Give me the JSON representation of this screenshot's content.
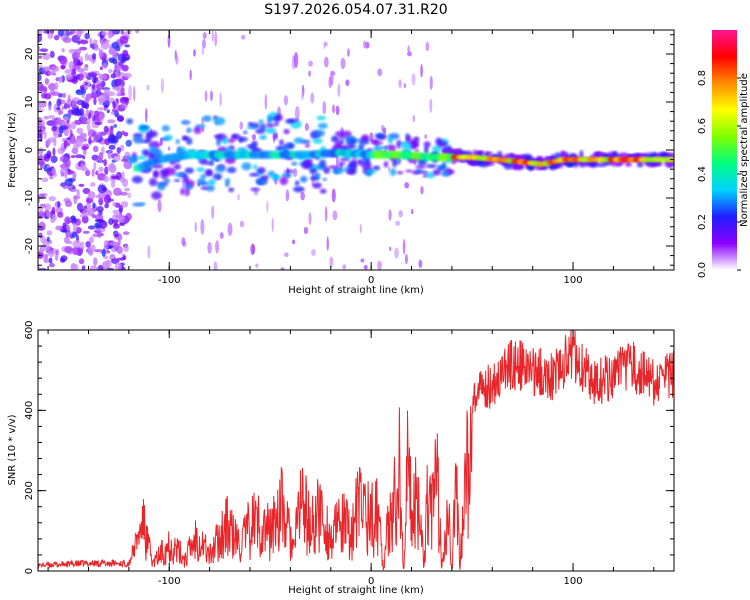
{
  "chart_data": [
    {
      "type": "heatmap",
      "title": "S197.2026.054.07.31.R20",
      "xlabel": "Height of straight line (km)",
      "ylabel": "Frequency (Hz)",
      "xlim": [
        -165,
        150
      ],
      "ylim": [
        -25,
        25
      ],
      "xticks": [
        -100,
        0,
        100
      ],
      "yticks": [
        -20,
        -10,
        0,
        10,
        20
      ],
      "ridge": [
        {
          "x": -117,
          "y": -4
        },
        {
          "x": -105,
          "y": -2
        },
        {
          "x": -90,
          "y": -1
        },
        {
          "x": -75,
          "y": -1
        },
        {
          "x": -60,
          "y": -1
        },
        {
          "x": -45,
          "y": -1
        },
        {
          "x": -30,
          "y": -1
        },
        {
          "x": -15,
          "y": -0.5
        },
        {
          "x": 0,
          "y": -1
        },
        {
          "x": 15,
          "y": -1
        },
        {
          "x": 30,
          "y": -1.5
        },
        {
          "x": 50,
          "y": -1.5
        },
        {
          "x": 75,
          "y": -2.5
        },
        {
          "x": 85,
          "y": -3
        },
        {
          "x": 95,
          "y": -2
        },
        {
          "x": 110,
          "y": -2
        },
        {
          "x": 150,
          "y": -2
        }
      ],
      "colorbar": {
        "label": "Normalized spectral amplitude",
        "range": [
          0,
          1
        ],
        "ticks": [
          "0.0",
          "0.2",
          "0.4",
          "0.6",
          "0.8"
        ],
        "colors": [
          "#ffffff",
          "#8b00ff",
          "#1e1eff",
          "#00d2ff",
          "#00ff7f",
          "#7fff00",
          "#ffff00",
          "#ff8c00",
          "#ff0000",
          "#ff1493"
        ]
      }
    },
    {
      "type": "line",
      "xlabel": "Height of straight line (km)",
      "ylabel": "SNR (10 * v/v)",
      "xlim": [
        -165,
        150
      ],
      "ylim": [
        0,
        600
      ],
      "xticks": [
        -100,
        0,
        100
      ],
      "yticks": [
        0,
        200,
        400,
        600
      ],
      "color": "#e8262a",
      "series": [
        {
          "name": "SNR",
          "x": [
            -165,
            -140,
            -120,
            -112,
            -108,
            -100,
            -92,
            -86,
            -80,
            -72,
            -65,
            -58,
            -50,
            -45,
            -38,
            -35,
            -30,
            -25,
            -20,
            -15,
            -10,
            -5,
            0,
            4,
            6,
            10,
            13,
            14,
            16,
            18,
            20,
            24,
            26,
            28,
            30,
            33,
            35,
            38,
            40,
            42,
            44,
            46,
            50,
            55,
            60,
            70,
            80,
            90,
            100,
            110,
            120,
            130,
            140,
            150
          ],
          "values": [
            15,
            20,
            20,
            140,
            30,
            110,
            50,
            150,
            60,
            180,
            100,
            200,
            150,
            260,
            80,
            300,
            160,
            240,
            120,
            190,
            150,
            280,
            200,
            230,
            10,
            290,
            240,
            400,
            10,
            380,
            240,
            330,
            10,
            350,
            260,
            330,
            10,
            300,
            10,
            330,
            10,
            350,
            420,
            460,
            480,
            530,
            510,
            500,
            560,
            480,
            500,
            520,
            480,
            500
          ]
        }
      ]
    }
  ]
}
